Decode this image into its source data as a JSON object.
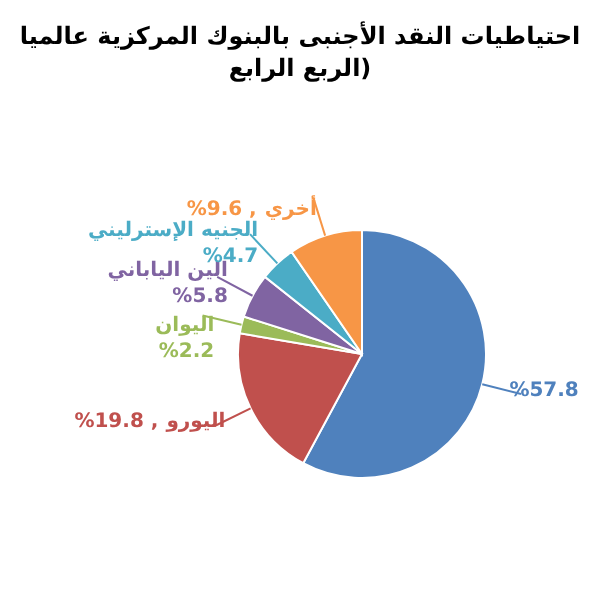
{
  "chart_data": {
    "type": "pie",
    "title": "احتياطيات النقد الأجنبى بالبنوك المركزية عالميا (الربع الرابع",
    "categories": [
      null,
      "اليورو",
      "اليوان",
      "الين الياباني",
      "الجنيه الإسترليني",
      "أخري"
    ],
    "values": [
      57.8,
      19.8,
      2.2,
      5.8,
      4.7,
      9.6
    ],
    "colors": [
      "#4f81bd",
      "#c0504d",
      "#9bbb59",
      "#8064a2",
      "#4bacc6",
      "#f79646"
    ],
    "value_labels": [
      "%57.8",
      "%19.8 ,",
      "%2.2",
      "%5.8",
      "%4.7",
      "%9.6 ,"
    ]
  }
}
